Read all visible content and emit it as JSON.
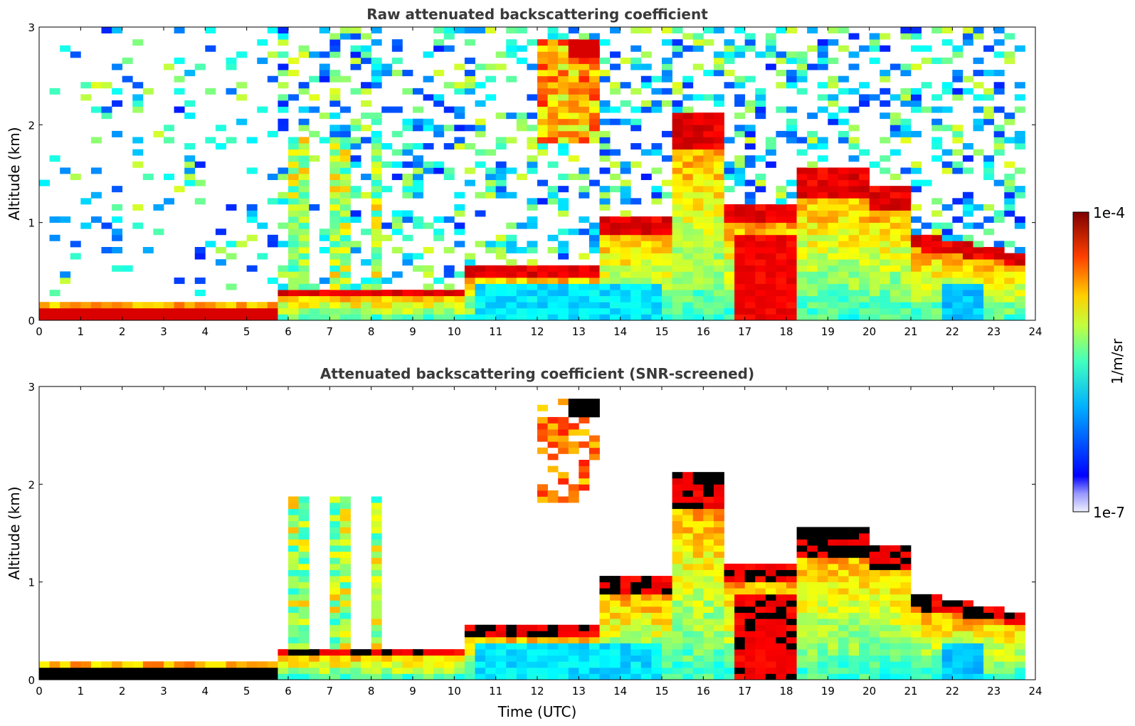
{
  "chart_data": [
    {
      "type": "heatmap",
      "title": "Raw attenuated backscattering coefficient",
      "xlabel": "",
      "ylabel": "Altitude (km)",
      "xlim": [
        0,
        24
      ],
      "ylim": [
        0,
        3
      ],
      "xticks": [
        "0",
        "1",
        "2",
        "3",
        "4",
        "5",
        "6",
        "7",
        "8",
        "9",
        "10",
        "11",
        "12",
        "13",
        "14",
        "15",
        "16",
        "17",
        "18",
        "19",
        "20",
        "21",
        "22",
        "23",
        "24"
      ],
      "yticks": [
        "0",
        "1",
        "2",
        "3"
      ],
      "screened": false
    },
    {
      "type": "heatmap",
      "title": "Attenuated backscattering coefficient (SNR-screened)",
      "xlabel": "Time (UTC)",
      "ylabel": "Altitude (km)",
      "xlim": [
        0,
        24
      ],
      "ylim": [
        0,
        3
      ],
      "xticks": [
        "0",
        "1",
        "2",
        "3",
        "4",
        "5",
        "6",
        "7",
        "8",
        "9",
        "10",
        "11",
        "12",
        "13",
        "14",
        "15",
        "16",
        "17",
        "18",
        "19",
        "20",
        "21",
        "22",
        "23",
        "24"
      ],
      "yticks": [
        "0",
        "1",
        "2",
        "3"
      ],
      "screened": true
    }
  ],
  "colorbar": {
    "label": "1/m/sr",
    "max_label": "1e-4",
    "min_label": "1e-7",
    "colormap": "jet",
    "colors": [
      "#dcdcf5",
      "#0000ff",
      "#00ccff",
      "#7fff7f",
      "#ffcc00",
      "#ff3300",
      "#7f0000"
    ]
  }
}
